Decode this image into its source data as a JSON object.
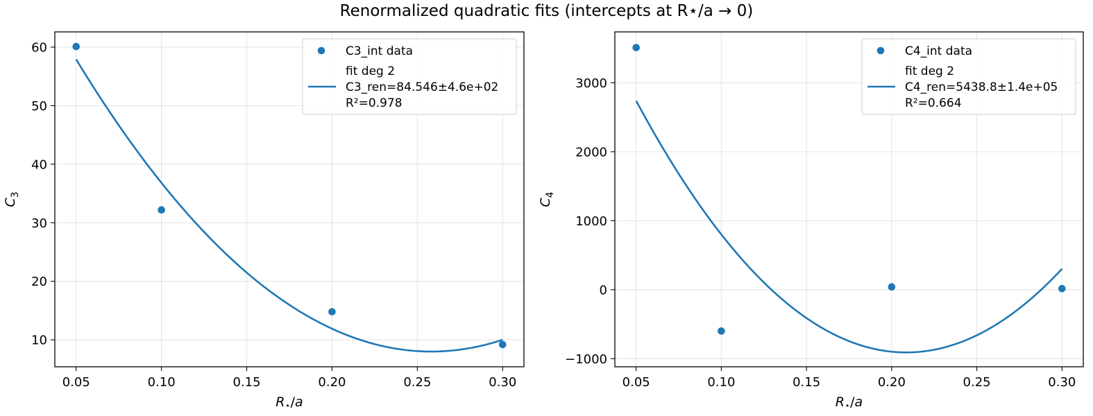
{
  "figure": {
    "title": "Renormalized quadratic fits (intercepts at R⋆/a → 0)"
  },
  "chart_data": [
    {
      "type": "scatter",
      "xlabel": "R⋆/a",
      "ylabel": "C3",
      "xlim": [
        0.0375,
        0.3125
      ],
      "ylim": [
        5.4,
        62.6
      ],
      "xticks": [
        0.05,
        0.1,
        0.15,
        0.2,
        0.25,
        0.3
      ],
      "xtick_labels": [
        "0.05",
        "0.10",
        "0.15",
        "0.20",
        "0.25",
        "0.30"
      ],
      "yticks": [
        10,
        20,
        30,
        40,
        50,
        60
      ],
      "ytick_labels": [
        "10",
        "20",
        "30",
        "40",
        "50",
        "60"
      ],
      "grid": true,
      "legend_position": "top-right",
      "color": "#1f77b4",
      "series": [
        {
          "name": "C3_int data",
          "kind": "scatter",
          "x": [
            0.05,
            0.1,
            0.2,
            0.3
          ],
          "y": [
            60.1,
            32.2,
            14.8,
            9.2
          ]
        },
        {
          "name": "fit deg 2",
          "name_lines": [
            "fit deg 2",
            "C3_ren=84.546±4.6e+02",
            "R²=0.978"
          ],
          "kind": "line",
          "quadratic": {
            "x0": 0.2582,
            "vertex": 8.0,
            "curvature": 1151.4
          },
          "x_range": [
            0.05,
            0.3
          ]
        }
      ]
    },
    {
      "type": "scatter",
      "xlabel": "R⋆/a",
      "ylabel": "C4",
      "xlim": [
        0.0375,
        0.3125
      ],
      "ylim": [
        -1118,
        3738
      ],
      "xticks": [
        0.05,
        0.1,
        0.15,
        0.2,
        0.25,
        0.3
      ],
      "xtick_labels": [
        "0.05",
        "0.10",
        "0.15",
        "0.20",
        "0.25",
        "0.30"
      ],
      "yticks": [
        -1000,
        0,
        1000,
        2000,
        3000
      ],
      "ytick_labels": [
        "−1000",
        "0",
        "1000",
        "2000",
        "3000"
      ],
      "grid": true,
      "legend_position": "top-right",
      "color": "#1f77b4",
      "series": [
        {
          "name": "C4_int data",
          "kind": "scatter",
          "x": [
            0.05,
            0.1,
            0.2,
            0.3
          ],
          "y": [
            3510,
            -600,
            40,
            15
          ]
        },
        {
          "name": "fit deg 2",
          "name_lines": [
            "fit deg 2",
            "C4_ren=5438.8±1.4e+05",
            "R²=0.664"
          ],
          "kind": "line",
          "quadratic": {
            "x0": 0.2086,
            "vertex": -910,
            "curvature": 145070
          },
          "x_range": [
            0.05,
            0.3
          ]
        }
      ]
    }
  ]
}
